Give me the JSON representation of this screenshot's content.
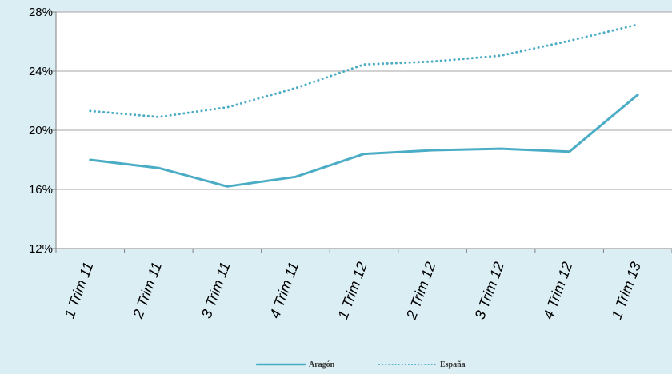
{
  "chart_data": {
    "type": "line",
    "categories": [
      "1 Trim 11",
      "2 Trim 11",
      "3 Trim 11",
      "4 Trim 11",
      "1 Trim 12",
      "2 Trim 12",
      "3 Trim 12",
      "4 Trim 12",
      "1 Trim 13"
    ],
    "series": [
      {
        "name": "Aragón",
        "values": [
          18.0,
          17.45,
          16.2,
          16.85,
          18.4,
          18.65,
          18.75,
          18.55,
          22.4
        ],
        "color": "#4bacc6",
        "style": "solid"
      },
      {
        "name": "España",
        "values": [
          21.3,
          20.9,
          21.55,
          22.85,
          24.45,
          24.65,
          25.05,
          26.05,
          27.15
        ],
        "color": "#4bacc6",
        "style": "dotted"
      }
    ],
    "ylim": [
      12,
      28
    ],
    "yticks": [
      12,
      16,
      20,
      24,
      28
    ],
    "ytick_labels": [
      "12%",
      "16%",
      "20%",
      "24%",
      "28%"
    ],
    "title": "",
    "xlabel": "",
    "ylabel": "",
    "grid": "horizontal",
    "legend_position": "bottom-center"
  }
}
